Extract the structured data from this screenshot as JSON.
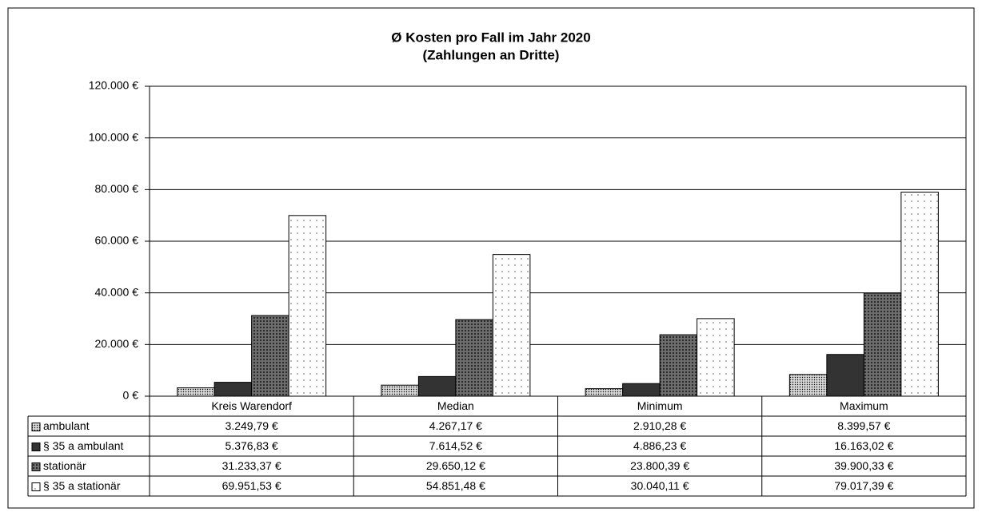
{
  "chart_data": {
    "type": "bar",
    "title": "Ø Kosten pro Fall im Jahr 2020",
    "subtitle": "(Zahlungen an Dritte)",
    "categories": [
      "Kreis Warendorf",
      "Median",
      "Minimum",
      "Maximum"
    ],
    "series": [
      {
        "name": "ambulant",
        "color": "#d8d8d8",
        "values": [
          3249.79,
          4267.17,
          2910.28,
          8399.57
        ],
        "value_labels": [
          "3.249,79 €",
          "4.267,17 €",
          "2.910,28 €",
          "8.399,57 €"
        ]
      },
      {
        "name": "§ 35 a ambulant",
        "color": "#333333",
        "values": [
          5376.83,
          7614.52,
          4886.23,
          16163.02
        ],
        "value_labels": [
          "5.376,83 €",
          "7.614,52 €",
          "4.886,23 €",
          "16.163,02 €"
        ]
      },
      {
        "name": "stationär",
        "color": "#6e6e6e",
        "values": [
          31233.37,
          29650.12,
          23800.39,
          39900.33
        ],
        "value_labels": [
          "31.233,37 €",
          "29.650,12 €",
          "23.800,39 €",
          "39.900,33 €"
        ]
      },
      {
        "name": "§ 35 a stationär",
        "color": "#ffffff",
        "values": [
          69951.53,
          54851.48,
          30040.11,
          79017.39
        ],
        "value_labels": [
          "69.951,53 €",
          "54.851,48 €",
          "30.040,11 €",
          "79.017,39 €"
        ]
      }
    ],
    "ylim": [
      0,
      120000
    ],
    "yticks": [
      {
        "value": 0,
        "label": "0 €"
      },
      {
        "value": 20000,
        "label": "20.000 €"
      },
      {
        "value": 40000,
        "label": "40.000 €"
      },
      {
        "value": 60000,
        "label": "60.000 €"
      },
      {
        "value": 80000,
        "label": "80.000 €"
      },
      {
        "value": 100000,
        "label": "100.000 €"
      },
      {
        "value": 120000,
        "label": "120.000 €"
      }
    ],
    "grid": true,
    "legend": "table"
  }
}
